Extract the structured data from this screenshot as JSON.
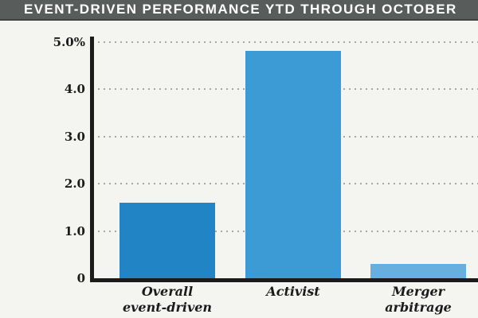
{
  "header": {
    "title": "EVENT-DRIVEN PERFORMANCE YTD THROUGH OCTOBER"
  },
  "colors": {
    "title_bar_background": "#585d5c",
    "title_text": "#ffffff",
    "page_background": "#f4f4f1",
    "axis": "#1b1b1b",
    "gridline_dots": "#a6a6a4"
  },
  "chart_data": {
    "type": "bar",
    "title": "EVENT-DRIVEN PERFORMANCE YTD THROUGH OCTOBER",
    "categories": [
      {
        "lines": [
          "Overall",
          "event-driven"
        ]
      },
      {
        "lines": [
          "Activist"
        ]
      },
      {
        "lines": [
          "Merger",
          "arbitrage"
        ]
      }
    ],
    "values": [
      1.6,
      4.8,
      0.3
    ],
    "unit": "%",
    "xlabel": "",
    "ylabel": "",
    "ylim": [
      0,
      5
    ],
    "yticks": {
      "values": [
        0,
        1,
        2,
        3,
        4,
        5
      ],
      "labels": [
        "0",
        "1.0",
        "2.0",
        "3.0",
        "4.0",
        "5.0%"
      ]
    },
    "grid": "horizontal-dotted",
    "legend": "none",
    "bar_colors": [
      "#2185c5",
      "#3c9ad4",
      "#66afdf"
    ]
  }
}
